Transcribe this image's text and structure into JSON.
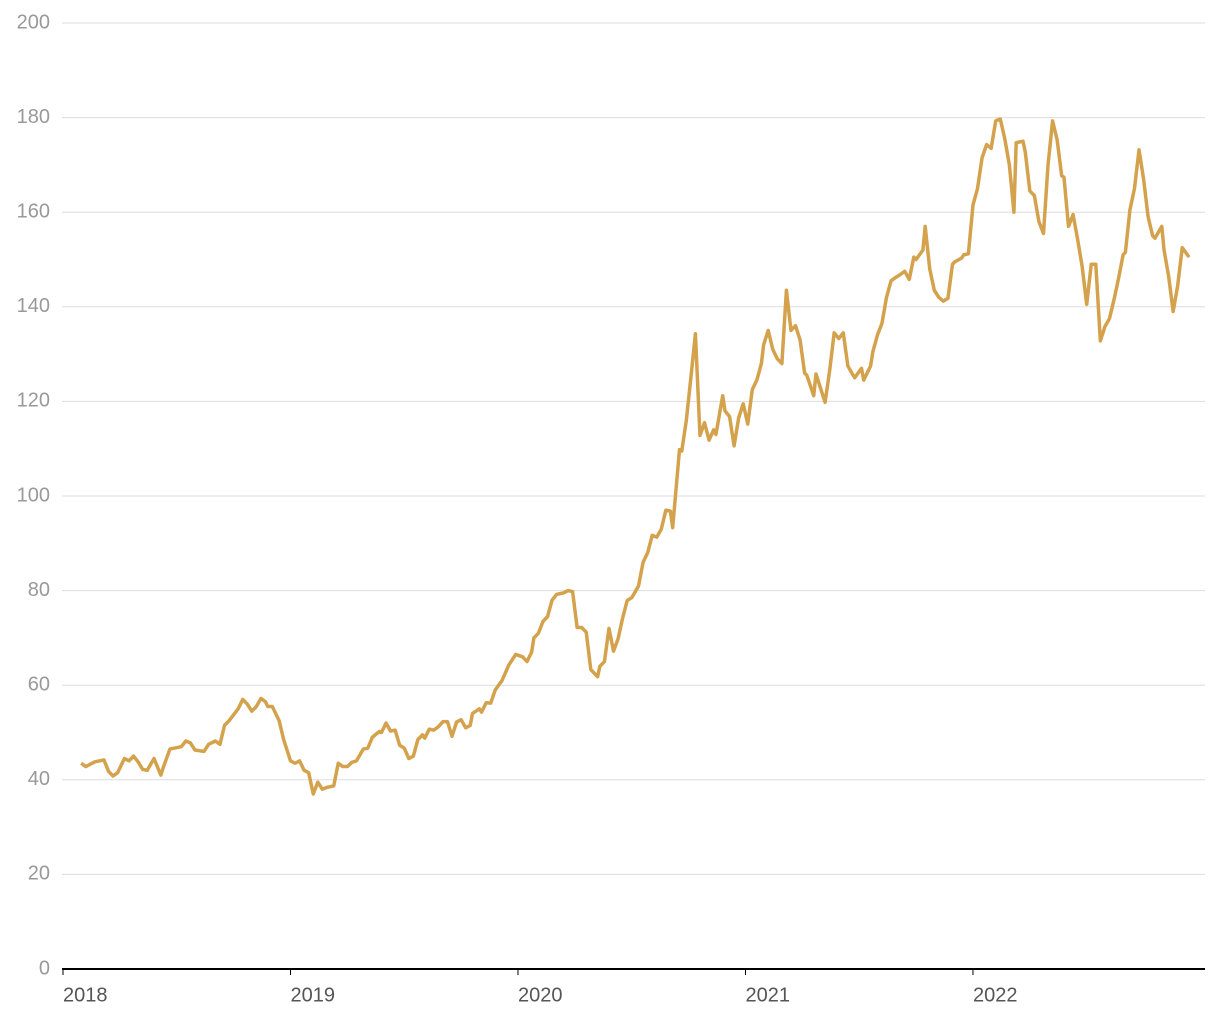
{
  "chart_data": {
    "type": "line",
    "color": "#d4a24c",
    "grid": true,
    "xlim": [
      2018,
      2023.02
    ],
    "xticks": [
      2018,
      2019,
      2020,
      2021,
      2022
    ],
    "ylim": [
      0,
      200
    ],
    "yticks": [
      0,
      20,
      40,
      60,
      80,
      100,
      120,
      140,
      160,
      180,
      200
    ],
    "x": [
      2018.08,
      2018.1,
      2018.14,
      2018.18,
      2018.2,
      2018.22,
      2018.24,
      2018.27,
      2018.29,
      2018.31,
      2018.33,
      2018.35,
      2018.37,
      2018.4,
      2018.43,
      2018.44,
      2018.47,
      2018.52,
      2018.54,
      2018.56,
      2018.58,
      2018.62,
      2018.64,
      2018.67,
      2018.69,
      2018.71,
      2018.73,
      2018.77,
      2018.79,
      2018.81,
      2018.83,
      2018.85,
      2018.87,
      2018.89,
      2018.9,
      2018.92,
      2018.95,
      2018.97,
      2019.0,
      2019.02,
      2019.04,
      2019.06,
      2019.08,
      2019.1,
      2019.12,
      2019.14,
      2019.16,
      2019.19,
      2019.21,
      2019.23,
      2019.25,
      2019.27,
      2019.29,
      2019.32,
      2019.34,
      2019.36,
      2019.39,
      2019.4,
      2019.42,
      2019.44,
      2019.46,
      2019.48,
      2019.5,
      2019.52,
      2019.54,
      2019.56,
      2019.58,
      2019.59,
      2019.61,
      2019.63,
      2019.65,
      2019.67,
      2019.69,
      2019.71,
      2019.73,
      2019.75,
      2019.77,
      2019.79,
      2019.8,
      2019.83,
      2019.84,
      2019.86,
      2019.88,
      2019.9,
      2019.93,
      2019.96,
      2019.99,
      2020.02,
      2020.04,
      2020.06,
      2020.07,
      2020.09,
      2020.11,
      2020.13,
      2020.15,
      2020.17,
      2020.2,
      2020.22,
      2020.24,
      2020.26,
      2020.28,
      2020.3,
      2020.32,
      2020.35,
      2020.36,
      2020.38,
      2020.4,
      2020.42,
      2020.44,
      2020.46,
      2020.48,
      2020.5,
      2020.51,
      2020.53,
      2020.55,
      2020.57,
      2020.59,
      2020.61,
      2020.63,
      2020.65,
      2020.67,
      2020.68,
      2020.71,
      2020.72,
      2020.74,
      2020.76,
      2020.78,
      2020.8,
      2020.82,
      2020.84,
      2020.86,
      2020.87,
      2020.9,
      2020.91,
      2020.93,
      2020.95,
      2020.97,
      2020.99,
      2021.01,
      2021.03,
      2021.05,
      2021.07,
      2021.08,
      2021.1,
      2021.12,
      2021.14,
      2021.16,
      2021.18,
      2021.2,
      2021.22,
      2021.24,
      2021.26,
      2021.27,
      2021.3,
      2021.31,
      2021.33,
      2021.35,
      2021.37,
      2021.39,
      2021.41,
      2021.43,
      2021.45,
      2021.47,
      2021.48,
      2021.51,
      2021.52,
      2021.55,
      2021.56,
      2021.58,
      2021.6,
      2021.62,
      2021.64,
      2021.66,
      2021.68,
      2021.7,
      2021.72,
      2021.74,
      2021.75,
      2021.78,
      2021.79,
      2021.81,
      2021.83,
      2021.85,
      2021.87,
      2021.89,
      2021.91,
      2021.92,
      2021.95,
      2021.96,
      2021.98,
      2022.0,
      2022.02,
      2022.04,
      2022.06,
      2022.08,
      2022.1,
      2022.12,
      2022.14,
      2022.16,
      2022.18,
      2022.19,
      2022.22,
      2022.23,
      2022.25,
      2022.27,
      2022.29,
      2022.31,
      2022.33,
      2022.35,
      2022.37,
      2022.39,
      2022.4,
      2022.42,
      2022.44,
      2022.46,
      2022.48,
      2022.5,
      2022.52,
      2022.54,
      2022.56,
      2022.58,
      2022.6,
      2022.62,
      2022.64,
      2022.66,
      2022.67,
      2022.69,
      2022.71,
      2022.73,
      2022.75,
      2022.77,
      2022.79,
      2022.8,
      2022.83,
      2022.84,
      2022.86,
      2022.88,
      2022.9,
      2022.92,
      2022.95
    ],
    "values": [
      43.5,
      42.8,
      43.8,
      44.2,
      41.8,
      40.8,
      41.5,
      44.5,
      44,
      45,
      43.8,
      42.2,
      42,
      44.5,
      41,
      42.5,
      46.5,
      47,
      48.2,
      47.8,
      46.3,
      46,
      47.5,
      48.2,
      47.5,
      51.5,
      52.5,
      55,
      57,
      56,
      54.5,
      55.5,
      57.2,
      56.5,
      55.5,
      55.5,
      52.5,
      48.5,
      44,
      43.5,
      44,
      42,
      41.5,
      37,
      39.5,
      38,
      38.4,
      38.7,
      43.5,
      42.8,
      42.8,
      43.7,
      44,
      46.5,
      46.7,
      49,
      50.2,
      50,
      52,
      50.3,
      50.5,
      47.3,
      46.7,
      44.5,
      45,
      48.5,
      49.5,
      48.8,
      50.7,
      50.5,
      51.2,
      52.3,
      52.3,
      49.2,
      52.2,
      52.7,
      51,
      51.5,
      54,
      55,
      54.3,
      56.3,
      56.2,
      59,
      61,
      64.3,
      66.5,
      66,
      65,
      67,
      70,
      71,
      73.5,
      74.5,
      78,
      79.2,
      79.5,
      80,
      79.8,
      72.2,
      72.2,
      71.2,
      63.3,
      61.8,
      64,
      65,
      72,
      67.2,
      69.8,
      74.2,
      77.9,
      78.5,
      79.3,
      81,
      86,
      88,
      91.7,
      91.3,
      93,
      97,
      96.8,
      93.3,
      109.8,
      109.5,
      116,
      125,
      134.3,
      112.8,
      115.5,
      111.8,
      114,
      113,
      121.2,
      118,
      116.8,
      110.6,
      116.5,
      119.5,
      115.2,
      122.5,
      124.5,
      128,
      132,
      135,
      131,
      129,
      128,
      143.5,
      135,
      136,
      133,
      126,
      125.5,
      121.2,
      125.8,
      122.8,
      119.8,
      126.5,
      134.5,
      133.3,
      134.5,
      127.5,
      125.8,
      125,
      127,
      124.5,
      127.5,
      130.5,
      134,
      136.5,
      142,
      145.5,
      146.2,
      146.8,
      147.5,
      145.8,
      150.5,
      150,
      152,
      157,
      148,
      143.5,
      142,
      141.2,
      141.8,
      149,
      149.5,
      150.3,
      151,
      151.2,
      161.5,
      165,
      171.5,
      174.3,
      173.5,
      179.3,
      179.7,
      175.5,
      170,
      160,
      174.7,
      175,
      172.7,
      164.5,
      163.5,
      158,
      155.5,
      170,
      179.3,
      175.3,
      167.7,
      167.4,
      157,
      159.5,
      154.3,
      148.5,
      140.5,
      149,
      149,
      132.8,
      135.8,
      137.5,
      141.5,
      146,
      151,
      151.5,
      160.5,
      165,
      173.2,
      167,
      159,
      155,
      154.5,
      157,
      152,
      146.5,
      139,
      144.5,
      152.5,
      150.5
    ]
  }
}
